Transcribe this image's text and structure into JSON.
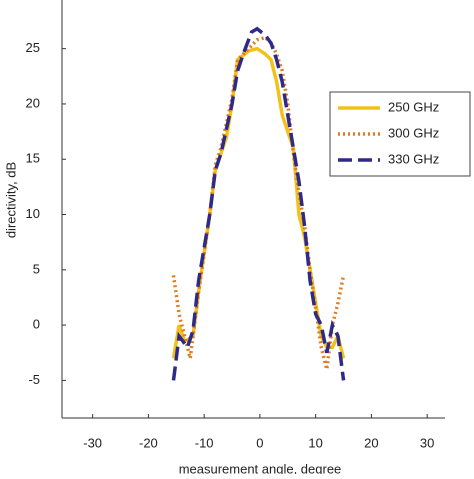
{
  "chart_data": {
    "type": "line",
    "xlabel": "measurement angle, degree",
    "ylabel": "directivity, dB",
    "xlim": [
      -35.5,
      33.2
    ],
    "ylim": [
      -8.4,
      29.4
    ],
    "xticks": [
      -30,
      -20,
      -10,
      0,
      10,
      20,
      30
    ],
    "yticks": [
      -5,
      0,
      5,
      10,
      15,
      20,
      25
    ],
    "legend": "upper right",
    "series": [
      {
        "name": "250 GHz",
        "color": "#f2c21b",
        "dash": "solid",
        "x": [
          -15.5,
          -14.5,
          -13.5,
          -12,
          -11,
          -9,
          -8,
          -7,
          -6,
          -5,
          -4,
          -2,
          -0.5,
          1,
          2,
          3,
          4,
          5,
          6,
          7,
          8,
          9,
          10,
          11,
          12,
          13,
          14,
          15
        ],
        "values": [
          -3,
          0,
          -1.5,
          -1,
          3,
          10,
          14,
          15.5,
          17,
          20,
          24,
          24.8,
          25,
          24.5,
          24,
          22,
          19,
          17.5,
          16,
          10,
          8,
          5,
          2,
          -1,
          -2,
          -2,
          -1,
          -3
        ]
      },
      {
        "name": "300 GHz",
        "color": "#e07b22",
        "dash": "dotted",
        "x": [
          -15.5,
          -14.5,
          -13.5,
          -12.5,
          -11,
          -9,
          -8,
          -7,
          -5,
          -4,
          -2,
          -0.5,
          1,
          2,
          3,
          4,
          5,
          6,
          7,
          8,
          9,
          10,
          11,
          12,
          13,
          14,
          15
        ],
        "values": [
          4.5,
          1,
          -1,
          -3,
          3,
          10,
          14.5,
          16,
          20.5,
          24,
          25,
          25.8,
          26,
          25.5,
          24.5,
          23,
          20,
          15.5,
          12,
          9,
          5,
          1.5,
          -2,
          -4,
          0,
          2,
          4.5
        ]
      },
      {
        "name": "330 GHz",
        "color": "#2e2a8a",
        "dash": "dashed",
        "x": [
          -15.5,
          -14.5,
          -13,
          -12,
          -11,
          -9,
          -8,
          -7,
          -5,
          -4,
          -3,
          -1.5,
          -0.5,
          1,
          2,
          3,
          4,
          5,
          6,
          7,
          8,
          9,
          10,
          11,
          12,
          13,
          14,
          15
        ],
        "values": [
          -5,
          -1,
          -2,
          -0.5,
          4,
          10,
          14,
          15.5,
          20,
          23,
          24.5,
          26.5,
          26.8,
          26.2,
          25.5,
          24,
          22,
          19,
          16,
          13,
          9,
          4,
          1,
          0,
          -2.5,
          0,
          -1,
          -5
        ]
      }
    ]
  }
}
